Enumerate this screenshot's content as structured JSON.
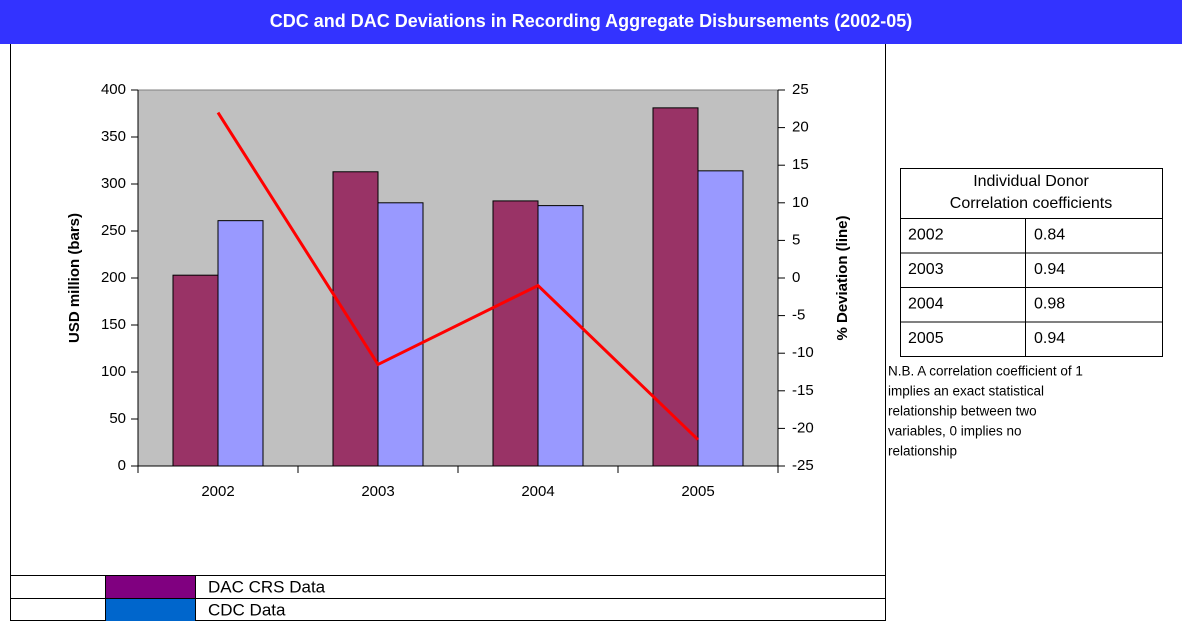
{
  "chart_data": {
    "type": "bar",
    "title": "CDC and  DAC Deviations in Recording Aggregate Disbursements (2002-05)",
    "categories": [
      "2002",
      "2003",
      "2004",
      "2005"
    ],
    "series": [
      {
        "name": "DAC CRS Data",
        "color": "#993366",
        "legend_color": "#800080",
        "values": [
          203,
          313,
          282,
          381
        ]
      },
      {
        "name": "CDC Data",
        "color": "#9999ff",
        "legend_color": "#0066cc",
        "values": [
          261,
          280,
          277,
          314
        ]
      },
      {
        "type": "line",
        "color": "#ff0000",
        "axis": "y2",
        "values": [
          22,
          -11.5,
          -1,
          -21.5
        ]
      }
    ],
    "ylabel": "USD million (bars)",
    "y2label": "% Deviation (line)",
    "ylim": [
      0,
      400
    ],
    "yticks": [
      0,
      50,
      100,
      150,
      200,
      250,
      300,
      350,
      400
    ],
    "y2lim": [
      -25,
      25
    ],
    "y2ticks": [
      -25,
      -20,
      -15,
      -10,
      -5,
      0,
      5,
      10,
      15,
      20,
      25
    ],
    "plot_background": "#c0c0c0"
  },
  "table": {
    "header": [
      "Individual Donor",
      "Correlation coefficients"
    ],
    "rows": [
      [
        "2002",
        0.84
      ],
      [
        "2003",
        0.94
      ],
      [
        "2004",
        0.98
      ],
      [
        "2005",
        0.94
      ]
    ],
    "note": [
      "N.B. A  correlation coefficient of 1",
      "implies an exact statistical",
      "relationship between two",
      "variables, 0 implies no",
      "relationship"
    ]
  }
}
